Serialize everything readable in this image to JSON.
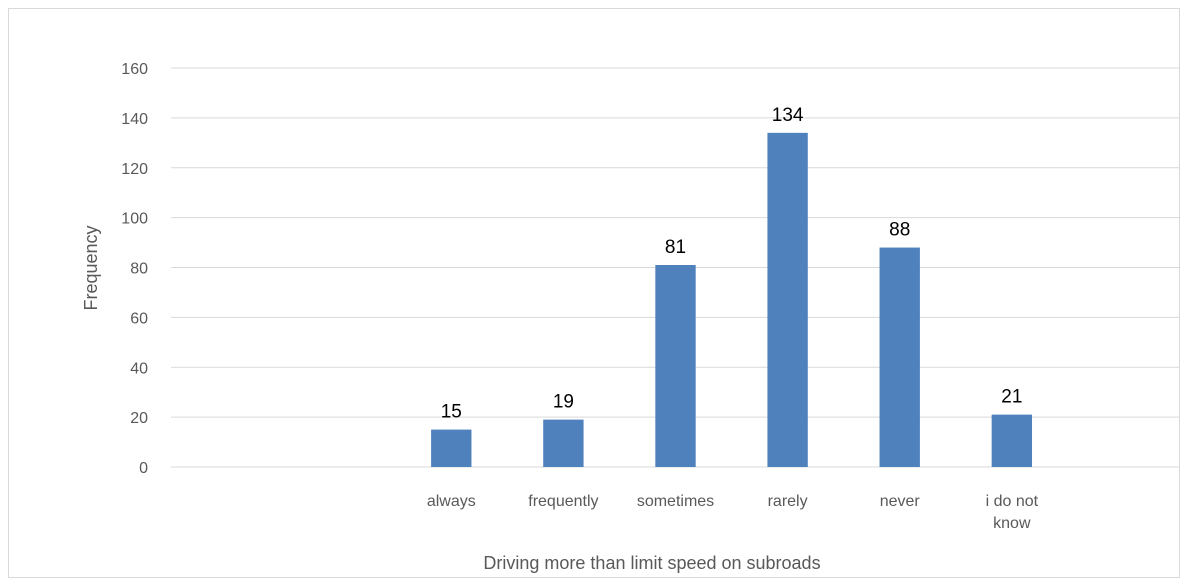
{
  "chart_data": {
    "type": "bar",
    "categories": [
      [
        ""
      ],
      [
        ""
      ],
      [
        "always"
      ],
      [
        "frequently"
      ],
      [
        "sometimes"
      ],
      [
        "rarely"
      ],
      [
        "never"
      ],
      [
        "i do not",
        "know"
      ],
      [
        ""
      ]
    ],
    "values": [
      null,
      null,
      15,
      19,
      81,
      134,
      88,
      21,
      null
    ],
    "data_labels": [
      "",
      "",
      "15",
      "19",
      "81",
      "134",
      "88",
      "21",
      ""
    ],
    "xlabel": "Driving more than limit speed on subroads",
    "ylabel": "Frequency",
    "ylim": [
      0,
      160
    ],
    "yticks": [
      0,
      20,
      40,
      60,
      80,
      100,
      120,
      140,
      160
    ],
    "ytick_labels": [
      "0",
      "20",
      "40",
      "60",
      "80",
      "100",
      "120",
      "140",
      "160"
    ],
    "grid": true,
    "legend": "none",
    "bar_color": "#4f81bd"
  }
}
